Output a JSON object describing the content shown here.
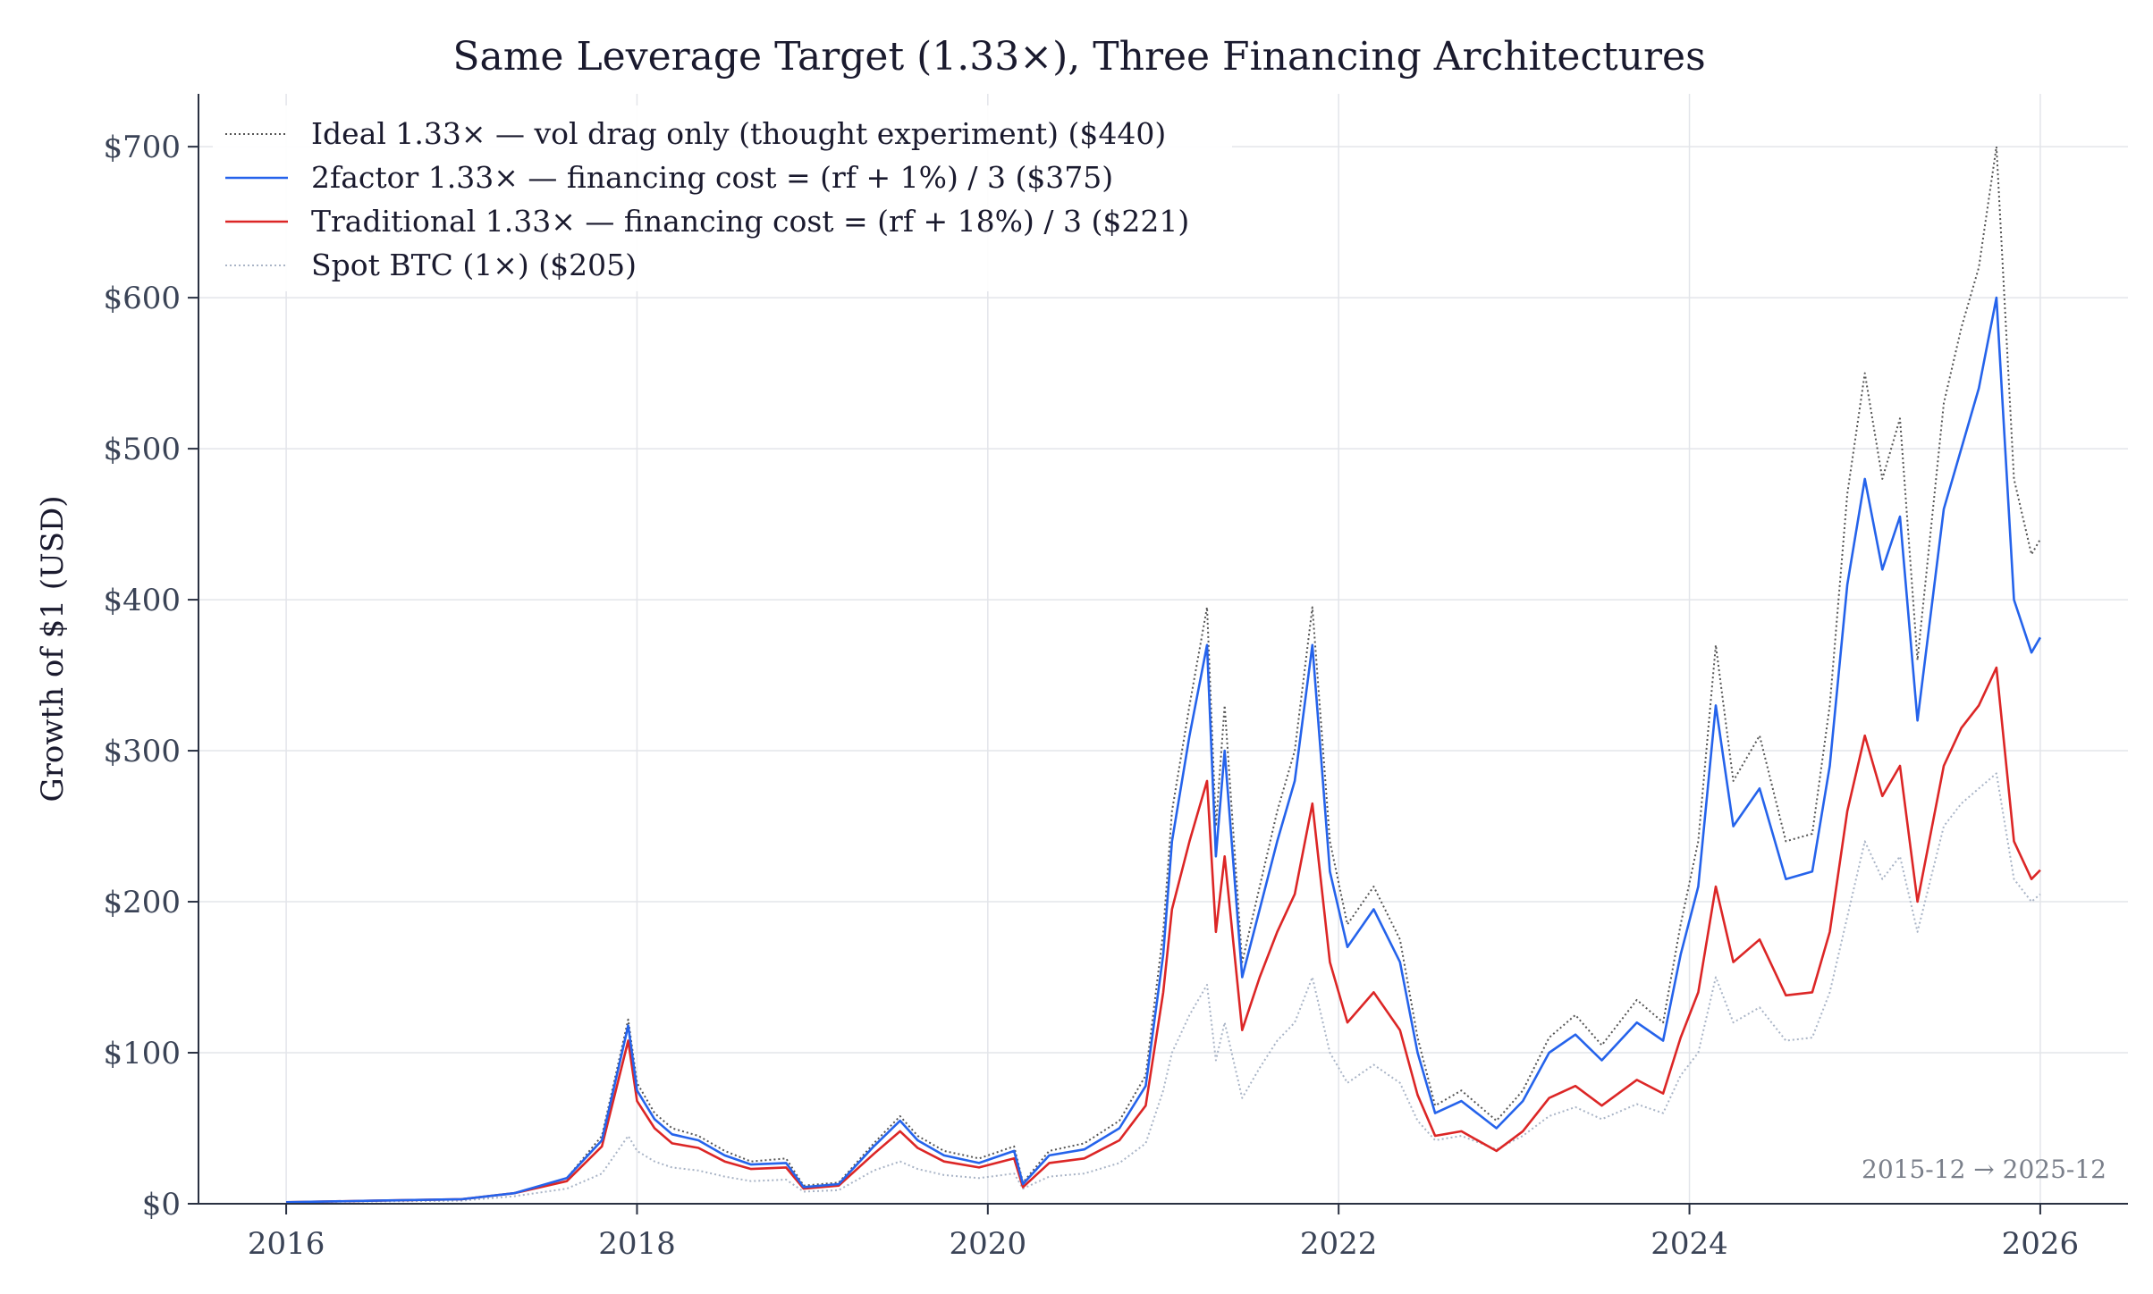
{
  "chart_data": {
    "type": "line",
    "title": "Same Leverage Target (1.33×), Three Financing Architectures",
    "ylabel": "Growth of $1 (USD)",
    "xlabel": "",
    "xlim": [
      2015.5,
      2026.5
    ],
    "ylim": [
      0,
      735
    ],
    "x_ticks": [
      2016,
      2018,
      2020,
      2022,
      2024,
      2026
    ],
    "x_tick_labels": [
      "2016",
      "2018",
      "2020",
      "2022",
      "2024",
      "2026"
    ],
    "y_ticks": [
      0,
      100,
      200,
      300,
      400,
      500,
      600,
      700
    ],
    "y_tick_labels": [
      "$0",
      "$100",
      "$200",
      "$300",
      "$400",
      "$500",
      "$600",
      "$700"
    ],
    "grid": true,
    "legend_position": "upper-left",
    "annotation": "2015-12 → 2025-12",
    "colors": {
      "ideal": "#555555",
      "twofactor": "#2563eb",
      "traditional": "#dc2626",
      "spot": "#a9b4c6"
    },
    "series": [
      {
        "name": "Ideal 1.33× — vol drag only (thought experiment)  ($440)",
        "key": "ideal",
        "style": "dotted",
        "x": [
          2016.0,
          2016.5,
          2017.0,
          2017.3,
          2017.6,
          2017.8,
          2017.95,
          2018.0,
          2018.1,
          2018.2,
          2018.35,
          2018.5,
          2018.65,
          2018.85,
          2018.95,
          2019.15,
          2019.35,
          2019.5,
          2019.6,
          2019.75,
          2019.95,
          2020.15,
          2020.2,
          2020.35,
          2020.55,
          2020.75,
          2020.9,
          2021.0,
          2021.05,
          2021.15,
          2021.25,
          2021.3,
          2021.35,
          2021.45,
          2021.55,
          2021.65,
          2021.75,
          2021.85,
          2021.95,
          2022.05,
          2022.2,
          2022.35,
          2022.45,
          2022.55,
          2022.7,
          2022.9,
          2023.05,
          2023.2,
          2023.35,
          2023.5,
          2023.7,
          2023.85,
          2023.95,
          2024.05,
          2024.15,
          2024.25,
          2024.4,
          2024.55,
          2024.7,
          2024.8,
          2024.9,
          2025.0,
          2025.1,
          2025.2,
          2025.3,
          2025.45,
          2025.55,
          2025.65,
          2025.75,
          2025.85,
          2025.95,
          2026.0
        ],
        "y": [
          1,
          2,
          3,
          7,
          17,
          45,
          122,
          80,
          60,
          50,
          45,
          35,
          28,
          30,
          12,
          14,
          40,
          58,
          45,
          35,
          30,
          38,
          14,
          35,
          40,
          55,
          85,
          180,
          260,
          330,
          395,
          250,
          330,
          160,
          210,
          260,
          300,
          395,
          240,
          185,
          210,
          175,
          110,
          65,
          75,
          55,
          75,
          110,
          125,
          105,
          135,
          120,
          185,
          240,
          370,
          280,
          310,
          240,
          245,
          330,
          470,
          550,
          480,
          520,
          360,
          530,
          580,
          620,
          700,
          480,
          430,
          440
        ]
      },
      {
        "name": "2factor 1.33× — financing cost = (rf + 1%) / 3  ($375)",
        "key": "twofactor",
        "style": "solid",
        "x": [
          2016.0,
          2016.5,
          2017.0,
          2017.3,
          2017.6,
          2017.8,
          2017.95,
          2018.0,
          2018.1,
          2018.2,
          2018.35,
          2018.5,
          2018.65,
          2018.85,
          2018.95,
          2019.15,
          2019.35,
          2019.5,
          2019.6,
          2019.75,
          2019.95,
          2020.15,
          2020.2,
          2020.35,
          2020.55,
          2020.75,
          2020.9,
          2021.0,
          2021.05,
          2021.15,
          2021.25,
          2021.3,
          2021.35,
          2021.45,
          2021.55,
          2021.65,
          2021.75,
          2021.85,
          2021.95,
          2022.05,
          2022.2,
          2022.35,
          2022.45,
          2022.55,
          2022.7,
          2022.9,
          2023.05,
          2023.2,
          2023.35,
          2023.5,
          2023.7,
          2023.85,
          2023.95,
          2024.05,
          2024.15,
          2024.25,
          2024.4,
          2024.55,
          2024.7,
          2024.8,
          2024.9,
          2025.0,
          2025.1,
          2025.2,
          2025.3,
          2025.45,
          2025.55,
          2025.65,
          2025.75,
          2025.85,
          2025.95,
          2026.0
        ],
        "y": [
          1,
          2,
          3,
          7,
          17,
          42,
          118,
          75,
          56,
          46,
          42,
          32,
          26,
          27,
          11,
          13,
          38,
          55,
          42,
          32,
          27,
          35,
          13,
          32,
          36,
          50,
          78,
          165,
          240,
          310,
          370,
          230,
          300,
          150,
          195,
          240,
          280,
          370,
          220,
          170,
          195,
          160,
          100,
          60,
          68,
          50,
          68,
          100,
          112,
          95,
          120,
          108,
          165,
          210,
          330,
          250,
          275,
          215,
          220,
          290,
          410,
          480,
          420,
          455,
          320,
          460,
          500,
          540,
          600,
          400,
          365,
          375
        ]
      },
      {
        "name": "Traditional 1.33× — financing cost = (rf + 18%) / 3  ($221)",
        "key": "traditional",
        "style": "solid",
        "x": [
          2016.0,
          2016.5,
          2017.0,
          2017.3,
          2017.6,
          2017.8,
          2017.95,
          2018.0,
          2018.1,
          2018.2,
          2018.35,
          2018.5,
          2018.65,
          2018.85,
          2018.95,
          2019.15,
          2019.35,
          2019.5,
          2019.6,
          2019.75,
          2019.95,
          2020.15,
          2020.2,
          2020.35,
          2020.55,
          2020.75,
          2020.9,
          2021.0,
          2021.05,
          2021.15,
          2021.25,
          2021.3,
          2021.35,
          2021.45,
          2021.55,
          2021.65,
          2021.75,
          2021.85,
          2021.95,
          2022.05,
          2022.2,
          2022.35,
          2022.45,
          2022.55,
          2022.7,
          2022.9,
          2023.05,
          2023.2,
          2023.35,
          2023.5,
          2023.7,
          2023.85,
          2023.95,
          2024.05,
          2024.15,
          2024.25,
          2024.4,
          2024.55,
          2024.7,
          2024.8,
          2024.9,
          2025.0,
          2025.1,
          2025.2,
          2025.3,
          2025.45,
          2025.55,
          2025.65,
          2025.75,
          2025.85,
          2025.95,
          2026.0
        ],
        "y": [
          1,
          2,
          3,
          7,
          15,
          38,
          108,
          68,
          50,
          40,
          37,
          28,
          23,
          24,
          10,
          12,
          33,
          48,
          37,
          28,
          24,
          30,
          11,
          27,
          30,
          42,
          65,
          140,
          195,
          240,
          280,
          180,
          230,
          115,
          150,
          180,
          205,
          265,
          160,
          120,
          140,
          115,
          72,
          45,
          48,
          35,
          48,
          70,
          78,
          65,
          82,
          73,
          110,
          140,
          210,
          160,
          175,
          138,
          140,
          180,
          260,
          310,
          270,
          290,
          200,
          290,
          315,
          330,
          355,
          240,
          215,
          221
        ]
      },
      {
        "name": "Spot BTC (1×)  ($205)",
        "key": "spot",
        "style": "dotted",
        "x": [
          2016.0,
          2016.5,
          2017.0,
          2017.3,
          2017.6,
          2017.8,
          2017.95,
          2018.0,
          2018.1,
          2018.2,
          2018.35,
          2018.5,
          2018.65,
          2018.85,
          2018.95,
          2019.15,
          2019.35,
          2019.5,
          2019.6,
          2019.75,
          2019.95,
          2020.15,
          2020.2,
          2020.35,
          2020.55,
          2020.75,
          2020.9,
          2021.0,
          2021.05,
          2021.15,
          2021.25,
          2021.3,
          2021.35,
          2021.45,
          2021.55,
          2021.65,
          2021.75,
          2021.85,
          2021.95,
          2022.05,
          2022.2,
          2022.35,
          2022.45,
          2022.55,
          2022.7,
          2022.9,
          2023.05,
          2023.2,
          2023.35,
          2023.5,
          2023.7,
          2023.85,
          2023.95,
          2024.05,
          2024.15,
          2024.25,
          2024.4,
          2024.55,
          2024.7,
          2024.8,
          2024.9,
          2025.0,
          2025.1,
          2025.2,
          2025.3,
          2025.45,
          2025.55,
          2025.65,
          2025.75,
          2025.85,
          2025.95,
          2026.0
        ],
        "y": [
          1,
          1.5,
          2,
          5,
          10,
          20,
          45,
          35,
          28,
          24,
          22,
          18,
          15,
          16,
          8,
          9,
          22,
          28,
          23,
          19,
          17,
          20,
          10,
          18,
          20,
          27,
          40,
          75,
          100,
          125,
          145,
          95,
          120,
          70,
          90,
          108,
          120,
          150,
          100,
          80,
          92,
          80,
          55,
          42,
          45,
          36,
          45,
          58,
          64,
          56,
          66,
          60,
          85,
          100,
          150,
          120,
          130,
          108,
          110,
          140,
          190,
          240,
          215,
          230,
          180,
          250,
          265,
          275,
          285,
          215,
          200,
          205
        ]
      }
    ]
  }
}
